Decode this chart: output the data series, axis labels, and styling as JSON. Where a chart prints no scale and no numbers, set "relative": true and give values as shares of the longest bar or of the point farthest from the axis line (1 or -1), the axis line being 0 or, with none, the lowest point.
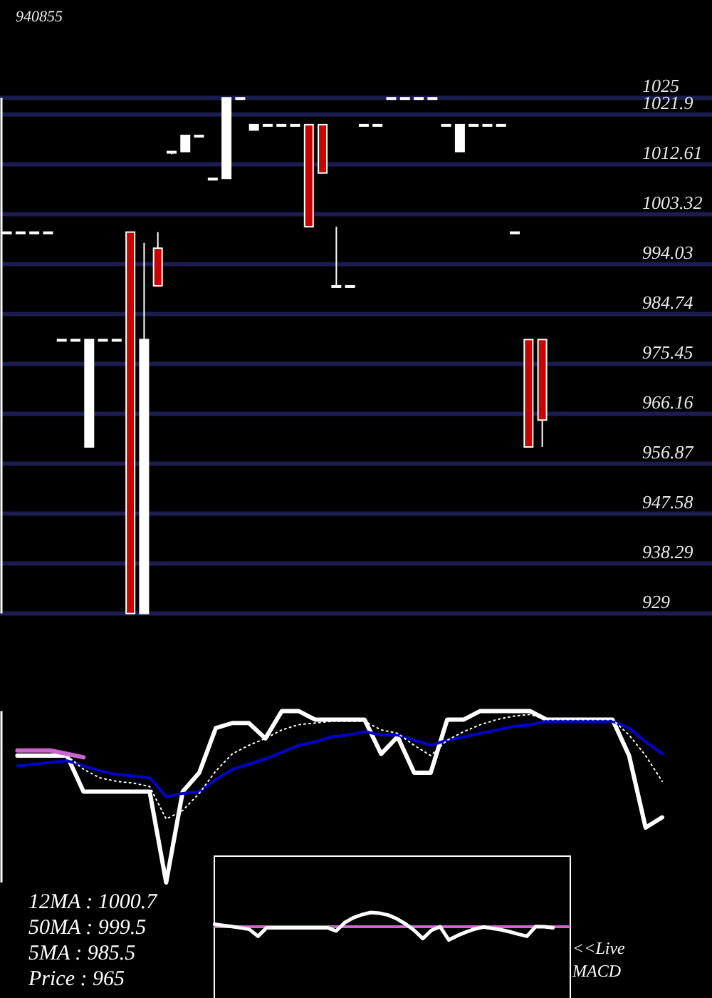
{
  "chart_data": [
    {
      "type": "candlestick",
      "title": "940855",
      "categories": [
        null,
        null,
        null,
        null,
        null,
        null,
        null,
        null,
        null,
        null,
        null,
        null,
        null,
        null,
        null,
        null,
        null,
        null,
        null,
        null,
        null,
        null,
        null,
        null,
        null,
        null,
        null,
        null,
        null,
        null,
        null,
        null,
        null,
        null,
        null,
        null,
        null,
        null,
        null,
        null
      ],
      "ohlc": [
        [
          1000,
          1000,
          1000,
          1000
        ],
        [
          1000,
          1000,
          1000,
          1000
        ],
        [
          1000,
          1000,
          1000,
          1000
        ],
        [
          1000,
          1000,
          1000,
          1000
        ],
        [
          980,
          980,
          980,
          980
        ],
        [
          980,
          980,
          980,
          980
        ],
        [
          960,
          980,
          960,
          980
        ],
        [
          980,
          980,
          980,
          980
        ],
        [
          980,
          980,
          980,
          980
        ],
        [
          1000,
          1000,
          929,
          929
        ],
        [
          929,
          998,
          929,
          980
        ],
        [
          997,
          1000,
          990,
          990
        ],
        [
          1015,
          1015,
          1014.5,
          1015
        ],
        [
          1015,
          1018,
          1015,
          1018
        ],
        [
          1018,
          1018,
          1018,
          1018
        ],
        [
          1010,
          1010,
          1010,
          1010
        ],
        [
          1010,
          1025,
          1010,
          1025
        ],
        [
          1025,
          1025,
          1025,
          1025
        ],
        [
          1019,
          1020,
          1019,
          1020
        ],
        [
          1020,
          1020,
          1020,
          1020
        ],
        [
          1020,
          1020,
          1020,
          1020
        ],
        [
          1020,
          1020,
          1020,
          1020
        ],
        [
          1020,
          1020,
          1001,
          1001
        ],
        [
          1020,
          1020,
          1011,
          1011
        ],
        [
          990,
          1001,
          990,
          990
        ],
        [
          990,
          990,
          990,
          990
        ],
        [
          1020,
          1020,
          1020,
          1020
        ],
        [
          1020,
          1020,
          1020,
          1020
        ],
        [
          1025,
          1025,
          1025,
          1025
        ],
        [
          1025,
          1025,
          1025,
          1025
        ],
        [
          1025,
          1025,
          1025,
          1025
        ],
        [
          1025,
          1025,
          1025,
          1025
        ],
        [
          1020,
          1020,
          1020,
          1020
        ],
        [
          1015,
          1020,
          1015,
          1020
        ],
        [
          1020,
          1020,
          1020,
          1020
        ],
        [
          1020,
          1020,
          1020,
          1020
        ],
        [
          1020,
          1020,
          1020,
          1020
        ],
        [
          1000,
          1000,
          1000,
          1000
        ],
        [
          980,
          980,
          960,
          960
        ],
        [
          980,
          980,
          960,
          965
        ]
      ],
      "colors": [
        "#ffffff",
        "#ffffff",
        "#ffffff",
        "#ffffff",
        "#ffffff",
        "#ffffff",
        "#ffffff",
        "#ffffff",
        "#ffffff",
        "#cc0000",
        "#ffffff",
        "#cc0000",
        "#ffffff",
        "#ffffff",
        "#ffffff",
        "#ffffff",
        "#ffffff",
        "#ffffff",
        "#ffffff",
        "#ffffff",
        "#ffffff",
        "#ffffff",
        "#cc0000",
        "#cc0000",
        "#ffffff",
        "#ffffff",
        "#ffffff",
        "#ffffff",
        "#ffffff",
        "#ffffff",
        "#ffffff",
        "#ffffff",
        "#ffffff",
        "#ffffff",
        "#ffffff",
        "#ffffff",
        "#ffffff",
        "#ffffff",
        "#cc0000",
        "#cc0000"
      ],
      "ylim": [
        929,
        1025
      ],
      "yticks": [
        929,
        938.29,
        947.58,
        956.87,
        966.16,
        975.45,
        984.74,
        994.03,
        1003.32,
        1012.61,
        1021.9,
        1025
      ],
      "grid": "y",
      "tick_labels": "y"
    },
    {
      "type": "line",
      "relative": true,
      "categories": [
        null,
        null,
        null,
        null,
        null,
        null,
        null,
        null,
        null,
        null,
        null,
        null,
        null,
        null,
        null,
        null,
        null,
        null,
        null,
        null,
        null,
        null,
        null,
        null,
        null,
        null,
        null,
        null,
        null,
        null,
        null,
        null,
        null,
        null,
        null,
        null,
        null,
        null,
        null,
        null
      ],
      "series": [
        {
          "color": "#ffffff",
          "values": [
            0.74,
            0.74,
            0.74,
            0.74,
            0.53,
            0.53,
            0.53,
            0.53,
            0.53,
            0,
            0.53,
            0.64,
            0.9,
            0.93,
            0.93,
            0.84,
            1,
            1,
            0.95,
            0.95,
            0.95,
            0.95,
            0.75,
            0.85,
            0.64,
            0.64,
            0.95,
            0.95,
            1,
            1,
            1,
            1,
            0.95,
            0.95,
            0.95,
            0.95,
            0.95,
            0.74,
            0.32,
            0.38
          ]
        },
        {
          "color": "#0000cc",
          "values": [
            0.68,
            0.69,
            0.7,
            0.71,
            0.68,
            0.65,
            0.63,
            0.62,
            0.61,
            0.5,
            0.52,
            0.53,
            0.6,
            0.66,
            0.69,
            0.72,
            0.76,
            0.8,
            0.82,
            0.85,
            0.86,
            0.88,
            0.86,
            0.86,
            0.83,
            0.8,
            0.83,
            0.85,
            0.87,
            0.89,
            0.91,
            0.92,
            0.94,
            0.94,
            0.94,
            0.94,
            0.94,
            0.9,
            0.82,
            0.75
          ]
        },
        {
          "color": "#ffffff",
          "line_style": "dotted",
          "values": [
            null,
            null,
            null,
            0.74,
            0.66,
            0.61,
            0.59,
            0.58,
            0.56,
            0.37,
            0.42,
            0.52,
            0.65,
            0.75,
            0.8,
            0.84,
            0.89,
            0.92,
            0.93,
            0.94,
            0.94,
            0.94,
            0.89,
            0.87,
            0.8,
            0.74,
            0.83,
            0.88,
            0.92,
            0.95,
            0.97,
            0.98,
            0.95,
            0.95,
            0.95,
            0.95,
            0.95,
            0.86,
            0.74,
            0.59
          ]
        },
        {
          "color": "#cc66cc",
          "values": [
            0.77,
            0.77,
            0.77,
            0.75,
            0.73,
            null,
            null,
            null,
            null,
            null,
            null,
            null,
            null,
            null,
            null,
            null,
            null,
            null,
            null,
            null,
            null,
            null,
            null,
            null,
            null,
            null,
            null,
            null,
            null,
            null,
            null,
            null,
            null,
            null,
            null,
            null,
            null,
            null,
            null,
            null
          ]
        }
      ],
      "annotations": [
        "12MA : 1000.7",
        "50MA : 999.5",
        "5MA : 985.5",
        "Price : 965"
      ]
    },
    {
      "type": "line",
      "relative": true,
      "categories": [
        null,
        null,
        null,
        null,
        null,
        null,
        null,
        null,
        null,
        null,
        null,
        null,
        null,
        null,
        null,
        null,
        null,
        null,
        null,
        null,
        null,
        null,
        null,
        null,
        null,
        null,
        null,
        null,
        null,
        null,
        null,
        null,
        null,
        null,
        null,
        null,
        null,
        null,
        null,
        null
      ],
      "series": [
        {
          "color": "#ffffff",
          "values": [
            0.17,
            0.09,
            0.01,
            -0.08,
            -0.18,
            -0.67,
            -0.07,
            -0.07,
            -0.07,
            -0.07,
            -0.07,
            -0.07,
            -0.07,
            -0.07,
            -0.3,
            0.29,
            0.63,
            0.85,
            1,
            0.95,
            0.82,
            0.56,
            0.2,
            -0.25,
            -0.83,
            -0.25,
            0,
            -0.93,
            -0.62,
            -0.37,
            -0.16,
            -0.02,
            -0.12,
            -0.21,
            -0.35,
            -0.52,
            -0.67,
            0.01,
            0,
            -0.07
          ]
        }
      ],
      "ref_lines": [
        {
          "axis": "y",
          "value": 0,
          "color": "#cc66cc"
        }
      ],
      "annotations": [
        "<<Live MACD"
      ]
    }
  ]
}
